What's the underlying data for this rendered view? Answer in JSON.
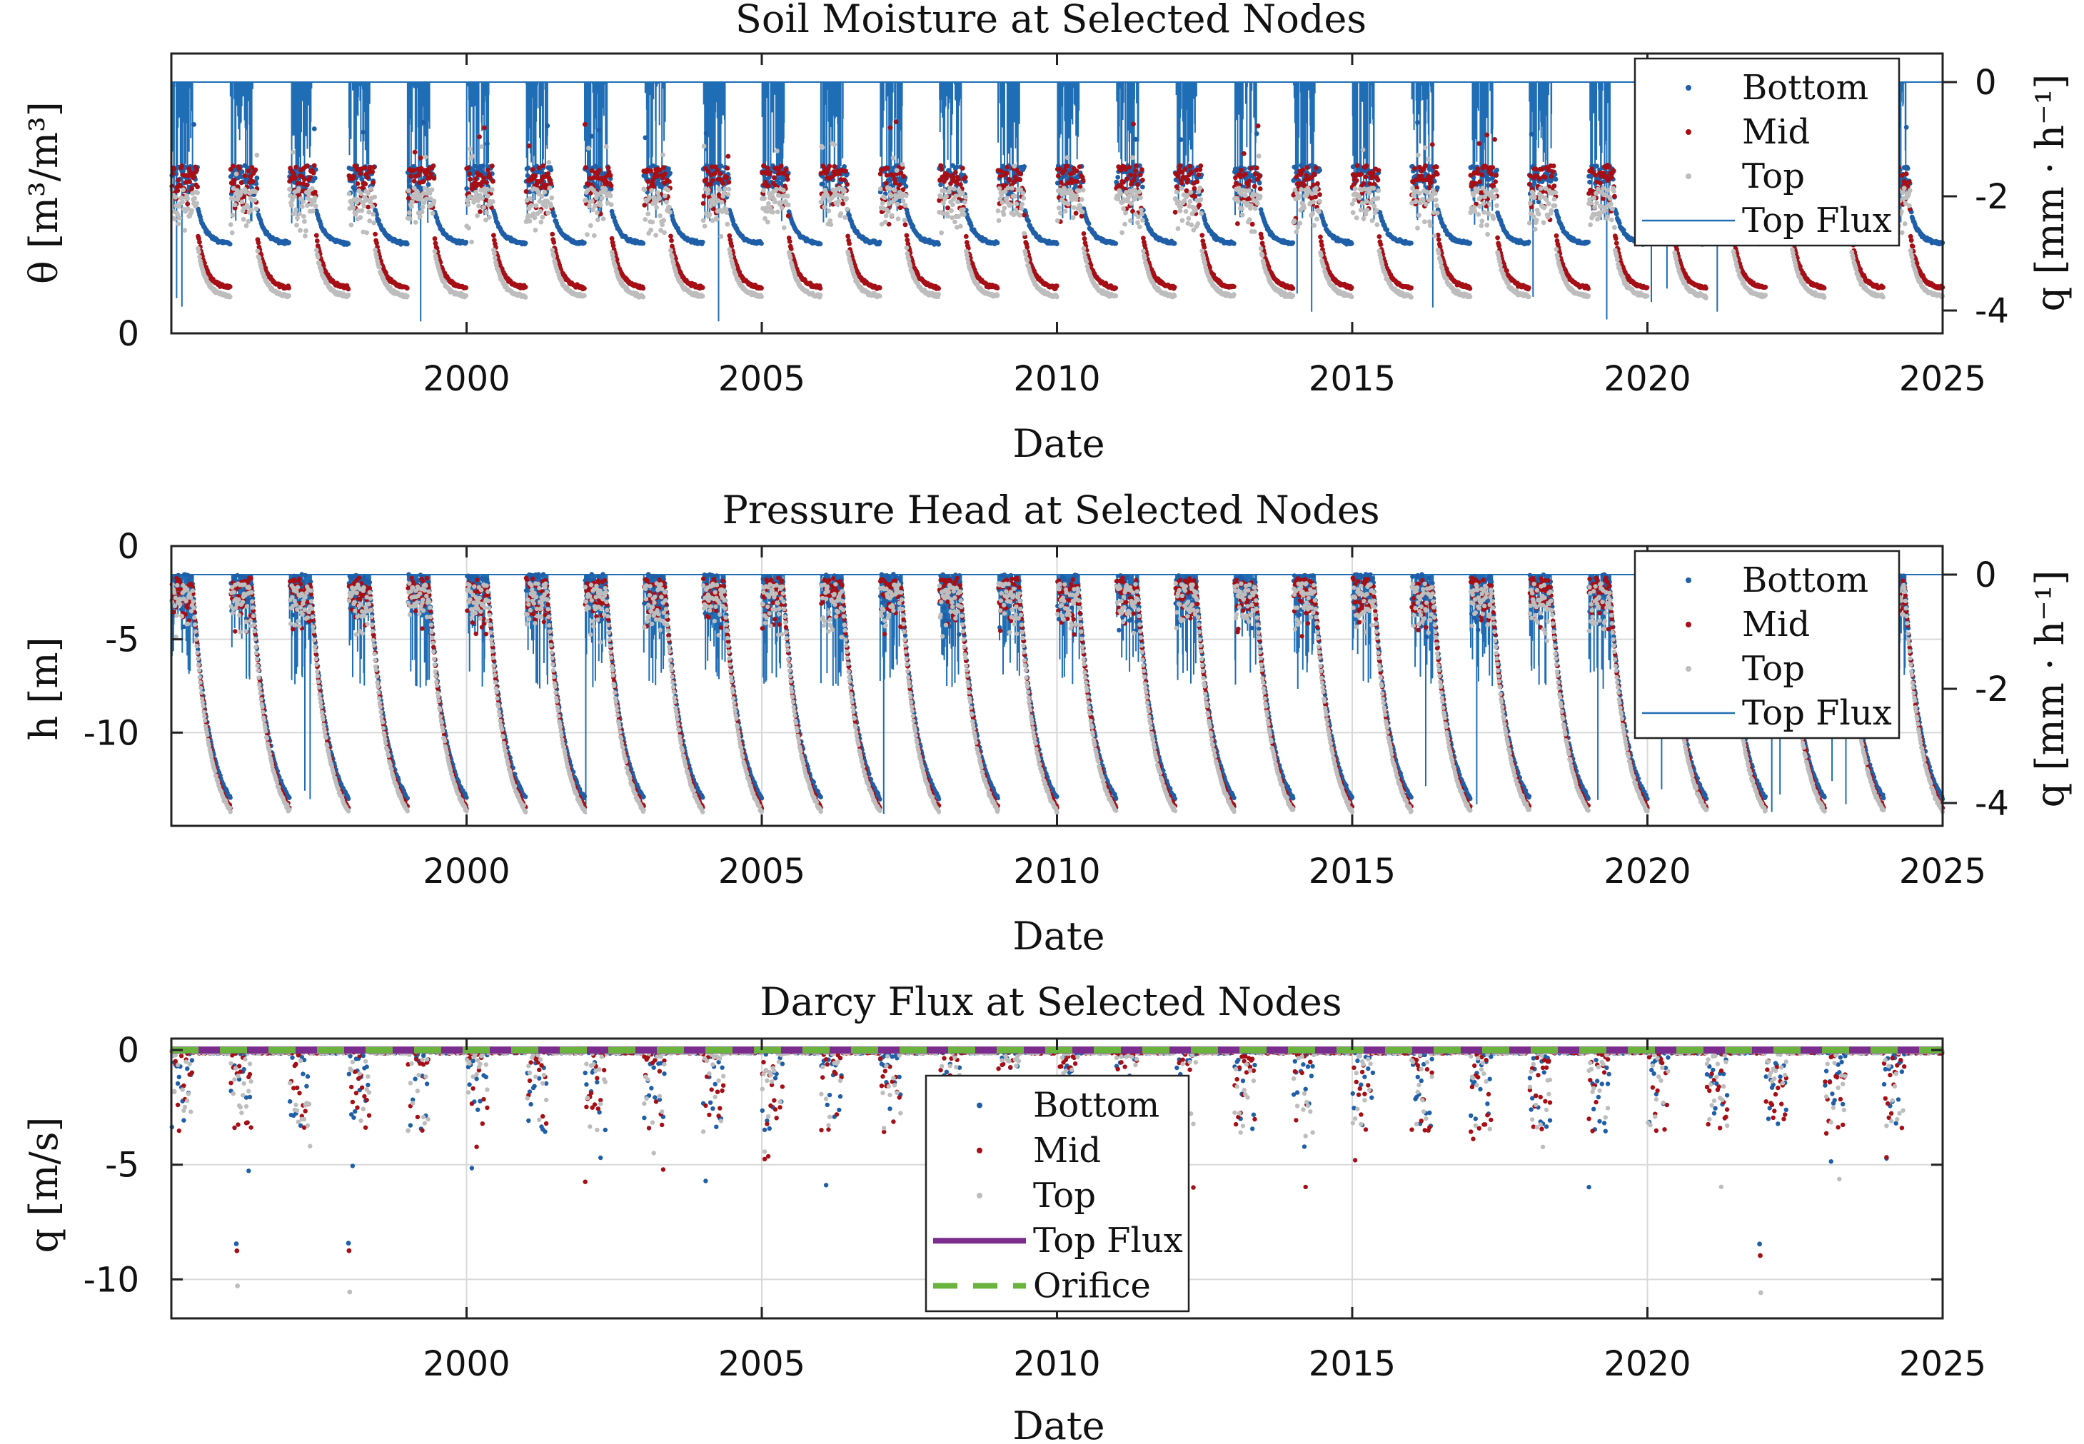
{
  "chart_data": [
    {
      "type": "scatter",
      "title": "Soil Moisture at Selected Nodes",
      "xlabel": "Date",
      "ylabel": "θ [m³/m³]",
      "y2label": "q [mm · h⁻¹]",
      "xlim": [
        1995.0,
        2025.0
      ],
      "xticks": [
        2000,
        2005,
        2010,
        2015,
        2020,
        2025
      ],
      "ylim": [
        0,
        0.5
      ],
      "yticks": [
        0
      ],
      "ytick_labels": [
        "0"
      ],
      "y2lim": [
        -4.4,
        0.5
      ],
      "y2ticks": [
        0,
        -2,
        -4
      ],
      "y2tick_labels": [
        "0",
        "-2",
        "-4"
      ],
      "grid": false,
      "legend_position": "top-right",
      "series": [
        {
          "name": "Bottom",
          "color": "#1f5fa8",
          "marker": "dot",
          "axis": "left",
          "peak": 0.3,
          "base": 0.16,
          "sigma": 0.04
        },
        {
          "name": "Mid",
          "color": "#a50f15",
          "marker": "dot",
          "axis": "left",
          "peak": 0.3,
          "base": 0.08,
          "sigma": 0.05
        },
        {
          "name": "Top",
          "color": "#bdbdbd",
          "marker": "dot",
          "axis": "left",
          "peak": 0.26,
          "base": 0.065,
          "sigma": 0.045
        },
        {
          "name": "Top Flux",
          "color": "#1f6eb5",
          "marker": "line",
          "axis": "right",
          "baseline": 0,
          "typical_min": -2.5,
          "extreme_min": -4.2
        }
      ]
    },
    {
      "type": "scatter",
      "title": "Pressure Head at Selected Nodes",
      "xlabel": "Date",
      "ylabel": "h [m]",
      "y2label": "q [mm · h⁻¹]",
      "xlim": [
        1995.0,
        2025.0
      ],
      "xticks": [
        2000,
        2005,
        2010,
        2015,
        2020,
        2025
      ],
      "ylim": [
        -15,
        0
      ],
      "yticks": [
        0,
        -5,
        -10
      ],
      "ytick_labels": [
        "0",
        "-5",
        "-10"
      ],
      "y2lim": [
        -4.4,
        0.5
      ],
      "y2ticks": [
        0,
        -2,
        -4
      ],
      "y2tick_labels": [
        "0",
        "-2",
        "-4"
      ],
      "grid": true,
      "legend_position": "top-right",
      "series": [
        {
          "name": "Bottom",
          "color": "#1f5fa8",
          "marker": "dot",
          "axis": "left",
          "peak": -1.5,
          "trough": -13.5
        },
        {
          "name": "Mid",
          "color": "#a50f15",
          "marker": "dot",
          "axis": "left",
          "peak": -1.7,
          "trough": -14.0
        },
        {
          "name": "Top",
          "color": "#bdbdbd",
          "marker": "dot",
          "axis": "left",
          "peak": -2.0,
          "trough": -14.2
        },
        {
          "name": "Top Flux",
          "color": "#1f6eb5",
          "marker": "line",
          "axis": "right",
          "baseline": 0,
          "typical_min": -2.0,
          "extreme_min": -4.2
        }
      ]
    },
    {
      "type": "scatter",
      "title": "Darcy Flux at Selected Nodes",
      "xlabel": "Date",
      "ylabel": "q [m/s]",
      "xlim": [
        1995.0,
        2025.0
      ],
      "xticks": [
        2000,
        2005,
        2010,
        2015,
        2020,
        2025
      ],
      "ylim": [
        -11.7,
        0.5
      ],
      "yticks": [
        0,
        -5,
        -10
      ],
      "ytick_labels": [
        "0",
        "-5",
        "-10"
      ],
      "grid": true,
      "legend_position": "center",
      "series": [
        {
          "name": "Bottom",
          "color": "#1f5fa8",
          "marker": "dot",
          "typical_min": -3.0,
          "extreme_min": -8.8
        },
        {
          "name": "Mid",
          "color": "#a50f15",
          "marker": "dot",
          "typical_min": -3.0,
          "extreme_min": -9.0
        },
        {
          "name": "Top",
          "color": "#bdbdbd",
          "marker": "dot",
          "typical_min": -3.0,
          "extreme_min": -10.6
        },
        {
          "name": "Top Flux",
          "color": "#7b2d8e",
          "marker": "solid-line",
          "value": 0
        },
        {
          "name": "Orifice",
          "color": "#6ab43e",
          "marker": "dashed-line",
          "value": 0
        }
      ]
    }
  ]
}
